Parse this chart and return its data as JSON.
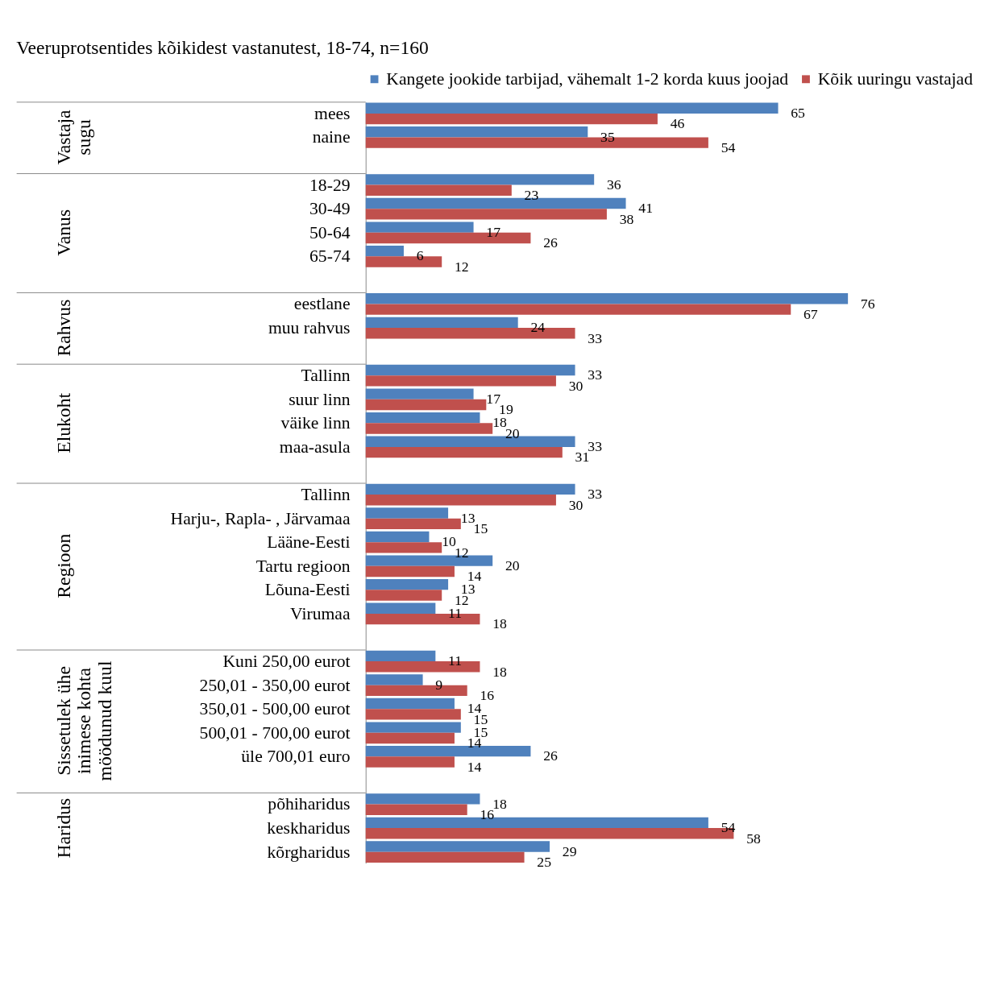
{
  "chart_data": {
    "type": "bar",
    "orientation": "horizontal",
    "title": "Veeruprotsentides kõikidest vastanutest, 18-74, n=160",
    "categories": [
      "mees",
      "naine",
      null,
      "18-29",
      "30-49",
      "50-64",
      "65-74",
      null,
      "eestlane",
      "muu rahvus",
      null,
      "Tallinn",
      "suur linn",
      "väike linn",
      "maa-asula",
      null,
      "Tallinn",
      "Harju-, Rapla- , Järvamaa",
      "Lääne-Eesti",
      "Tartu regioon",
      "Lõuna-Eesti",
      "Virumaa",
      null,
      "Kuni 250,00 eurot",
      "250,01 - 350,00 eurot",
      "350,01 - 500,00 eurot",
      "500,01 - 700,00 eurot",
      "üle 700,01 euro",
      null,
      "põhiharidus",
      "keskharidus",
      "kõrgharidus"
    ],
    "series": [
      {
        "name": "Kangete jookide tarbijad, vähemalt 1-2 korda kuus joojad",
        "color": "#4f81bd",
        "values": [
          65,
          35,
          null,
          36,
          41,
          17,
          6,
          null,
          76,
          24,
          null,
          33,
          17,
          18,
          33,
          null,
          33,
          13,
          10,
          20,
          13,
          11,
          null,
          11,
          9,
          14,
          15,
          26,
          null,
          18,
          54,
          29
        ]
      },
      {
        "name": "Kõik uuringu vastajad",
        "color": "#c0504d",
        "values": [
          46,
          54,
          null,
          23,
          38,
          26,
          12,
          null,
          67,
          33,
          null,
          30,
          19,
          20,
          31,
          null,
          30,
          15,
          12,
          14,
          12,
          18,
          null,
          18,
          16,
          15,
          14,
          14,
          null,
          16,
          58,
          25
        ]
      }
    ],
    "annotations": [
      "Vastaja sugu",
      "Vanus",
      "Rahvus",
      "Elukoht",
      "Regioon",
      "Sissetulek ühe inimese kohta möödunud kuul",
      "Haridus"
    ],
    "data_labels": true,
    "legend": "top",
    "grid": false
  }
}
